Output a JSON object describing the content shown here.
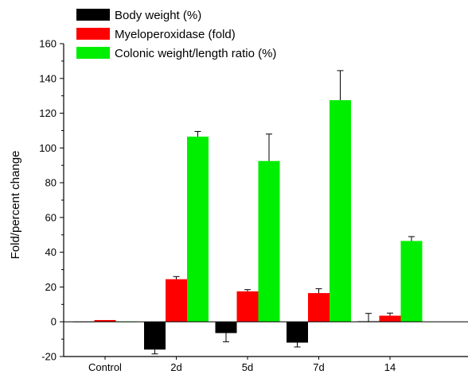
{
  "chart_data": {
    "type": "bar",
    "title": "",
    "xlabel": "",
    "ylabel": "Fold/percent change",
    "ylim": [
      -20,
      160
    ],
    "yticks": [
      -20,
      0,
      20,
      40,
      60,
      80,
      100,
      120,
      140,
      160
    ],
    "grid": false,
    "legend_position": "top-left",
    "categories": [
      "Control",
      "2d",
      "5d",
      "7d",
      "14"
    ],
    "series": [
      {
        "name": "Body weight (%)",
        "color": "#000000",
        "values": [
          0,
          -16,
          -6.5,
          -12,
          0.3
        ],
        "errors": [
          0,
          2.5,
          5,
          2.5,
          4.5
        ]
      },
      {
        "name": "Myeloperoxidase (fold)",
        "color": "#ff0000",
        "values": [
          1,
          24.5,
          17.5,
          16.5,
          3.5
        ],
        "errors": [
          0,
          1.5,
          1,
          2.5,
          1.5
        ]
      },
      {
        "name": "Colonic weight/length ratio (%)",
        "color": "#00ee00",
        "values": [
          0,
          106.5,
          92.5,
          127.5,
          46.5
        ],
        "errors": [
          0,
          3,
          15.5,
          17,
          2.5
        ]
      }
    ]
  }
}
